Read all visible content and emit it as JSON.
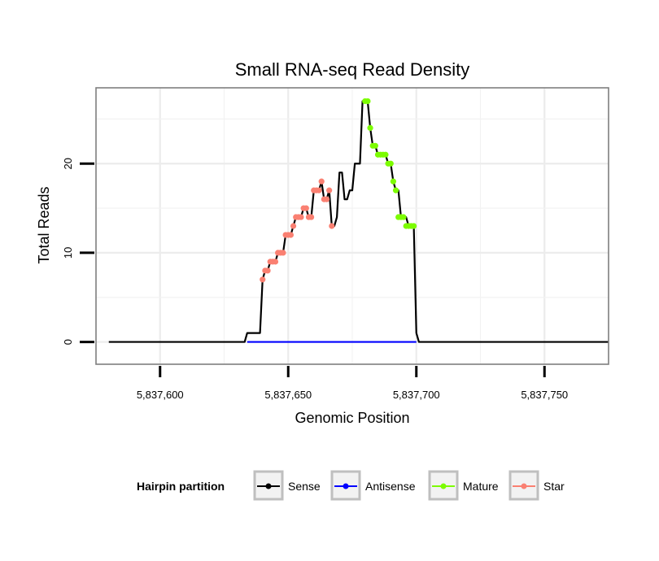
{
  "chart_data": {
    "type": "line",
    "title": "Small RNA-seq Read Density",
    "xlabel": "Genomic Position",
    "ylabel": "Total Reads",
    "xlim": [
      5837575,
      5837775
    ],
    "ylim": [
      -2.5,
      28.5
    ],
    "xticks": [
      5837600,
      5837650,
      5837700,
      5837750
    ],
    "xtick_labels": [
      "5,837,600",
      "5,837,650",
      "5,837,700",
      "5,837,750"
    ],
    "yticks": [
      0,
      10,
      20
    ],
    "ytick_labels": [
      "0",
      "10",
      "20"
    ],
    "grid": true,
    "legend": {
      "title": "Hairpin partition",
      "position": "bottom",
      "entries": [
        {
          "label": "Sense",
          "color": "#000000"
        },
        {
          "label": "Antisense",
          "color": "#0000ff"
        },
        {
          "label": "Mature",
          "color": "#7cfc00"
        },
        {
          "label": "Star",
          "color": "#fa8072"
        }
      ]
    },
    "series": [
      {
        "name": "Sense",
        "color": "#000000",
        "kind": "line",
        "x": [
          5837580,
          5837633,
          5837634,
          5837639,
          5837640,
          5837641,
          5837642,
          5837643,
          5837644,
          5837645,
          5837646,
          5837647,
          5837648,
          5837649,
          5837650,
          5837651,
          5837652,
          5837653,
          5837654,
          5837655,
          5837656,
          5837657,
          5837658,
          5837659,
          5837660,
          5837661,
          5837662,
          5837663,
          5837664,
          5837665,
          5837666,
          5837667,
          5837668,
          5837669,
          5837670,
          5837671,
          5837672,
          5837673,
          5837674,
          5837675,
          5837676,
          5837677,
          5837678,
          5837679,
          5837680,
          5837681,
          5837682,
          5837683,
          5837684,
          5837685,
          5837686,
          5837687,
          5837688,
          5837689,
          5837690,
          5837691,
          5837692,
          5837693,
          5837694,
          5837695,
          5837696,
          5837697,
          5837698,
          5837699,
          5837700,
          5837701,
          5837775
        ],
        "y": [
          0,
          0,
          1,
          1,
          7,
          8,
          8,
          9,
          9,
          9,
          10,
          10,
          10,
          12,
          12,
          12,
          13,
          14,
          14,
          14,
          15,
          15,
          14,
          14,
          17,
          17,
          17,
          18,
          16,
          16,
          17,
          13,
          13,
          14,
          19,
          19,
          16,
          16,
          17,
          17,
          20,
          20,
          20,
          27,
          27,
          27,
          24,
          22,
          22,
          21,
          21,
          21,
          21,
          20,
          20,
          18,
          17,
          17,
          14,
          14,
          14,
          13,
          13,
          13,
          1,
          0,
          0
        ]
      },
      {
        "name": "Antisense",
        "color": "#0000ff",
        "kind": "line",
        "x": [
          5837634,
          5837700
        ],
        "y": [
          0,
          0
        ]
      },
      {
        "name": "Mature",
        "color": "#7cfc00",
        "kind": "points",
        "x": [
          5837680,
          5837681,
          5837682,
          5837683,
          5837684,
          5837685,
          5837686,
          5837687,
          5837688,
          5837689,
          5837690,
          5837691,
          5837692,
          5837693,
          5837694,
          5837695,
          5837696,
          5837697,
          5837698,
          5837699
        ],
        "y": [
          27,
          27,
          24,
          22,
          22,
          21,
          21,
          21,
          21,
          20,
          20,
          18,
          17,
          14,
          14,
          14,
          13,
          13,
          13,
          13
        ]
      },
      {
        "name": "Star",
        "color": "#fa8072",
        "kind": "points",
        "x": [
          5837640,
          5837641,
          5837642,
          5837643,
          5837644,
          5837645,
          5837646,
          5837647,
          5837648,
          5837649,
          5837650,
          5837651,
          5837652,
          5837653,
          5837654,
          5837655,
          5837656,
          5837657,
          5837658,
          5837659,
          5837660,
          5837661,
          5837662,
          5837663,
          5837664,
          5837665,
          5837666,
          5837667
        ],
        "y": [
          7,
          8,
          8,
          9,
          9,
          9,
          10,
          10,
          10,
          12,
          12,
          12,
          13,
          14,
          14,
          14,
          15,
          15,
          14,
          14,
          17,
          17,
          17,
          18,
          16,
          16,
          17,
          13
        ]
      }
    ]
  }
}
